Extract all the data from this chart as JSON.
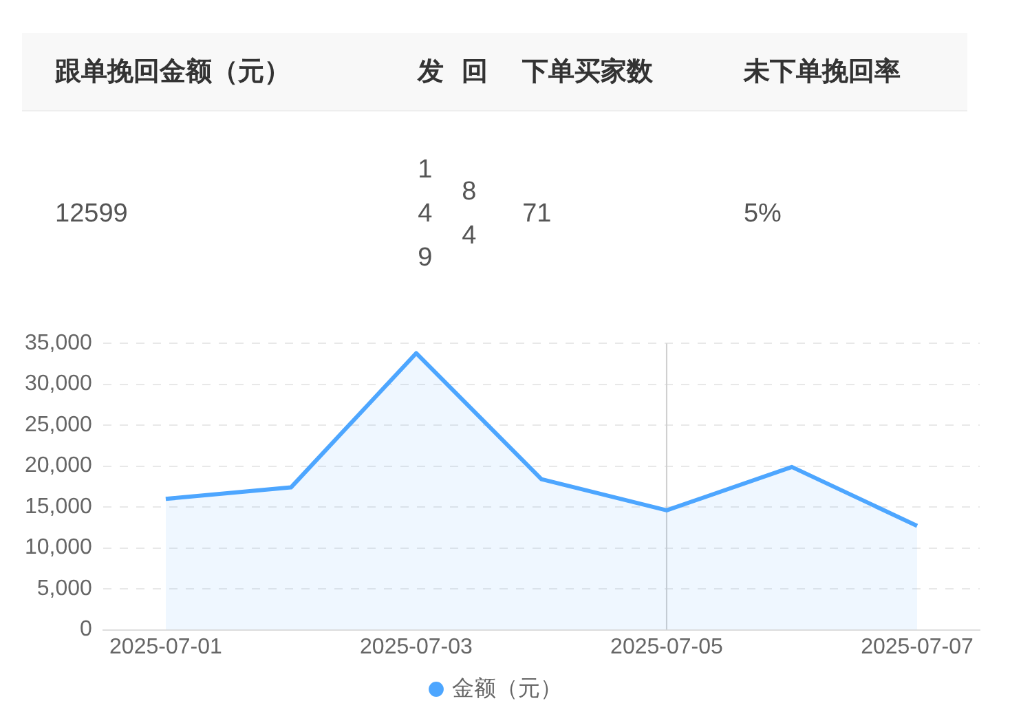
{
  "chart_data": [
    {
      "type": "other",
      "annotations": [
        "跟单挽回金额（元）",
        "发",
        "回",
        "下单买家数",
        "未下单挽回率",
        "12599",
        "149",
        "84",
        "71",
        "5%"
      ]
    },
    {
      "type": "area",
      "categories": [
        "2025-07-01",
        null,
        "2025-07-03",
        null,
        "2025-07-05",
        null,
        "2025-07-07"
      ],
      "series": [
        {
          "name": "金额（元）",
          "color": "#4da6ff",
          "values": [
            16000,
            17400,
            33800,
            18400,
            14600,
            19900,
            12700
          ]
        }
      ],
      "ylim": [
        0,
        35000
      ],
      "yticks": [
        0,
        {
          "value": 5000,
          "label": "5,000"
        },
        {
          "value": 10000,
          "label": "10,000"
        },
        {
          "value": 15000,
          "label": "15,000"
        },
        {
          "value": 20000,
          "label": "20,000"
        },
        {
          "value": 25000,
          "label": "25,000"
        },
        {
          "value": 30000,
          "label": "30,000"
        },
        {
          "value": 35000,
          "label": "35,000"
        }
      ],
      "ref_lines": [
        {
          "axis": "x",
          "value": "2025-07-05",
          "color": "#d0d0d0"
        }
      ],
      "grid": "y",
      "legend": "bottom",
      "marker": "none"
    }
  ]
}
